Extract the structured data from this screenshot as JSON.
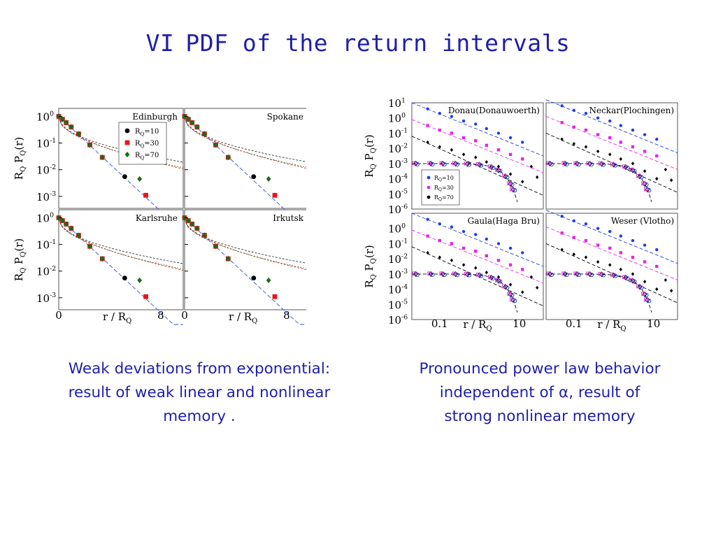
{
  "title": {
    "part1": "VI",
    "part2": "PDF of the return intervals"
  },
  "captions": {
    "left": [
      "Weak deviations from exponential:",
      "result of weak linear and  nonlinear",
      "memory ."
    ],
    "right": [
      "Pronounced power law behavior",
      "independent of α, result of",
      "strong nonlinear memory"
    ]
  },
  "colors": {
    "text": "#1f1fa8",
    "rq10": "#000000",
    "rq30": "#e8151b",
    "rq70": "#1a6b1a",
    "rq10_right": "#1f3fe6",
    "rq30_right": "#e626e6",
    "rq70_right": "#000000"
  },
  "chart_data": [
    {
      "type": "scatter",
      "panels": [
        "Edinburgh",
        "Spokane",
        "Karlsruhe",
        "Irkutsk"
      ],
      "xlabel_base": "r / R",
      "xlabel_sub": "Q",
      "ylabel": "R_Q P_Q(r)",
      "xticks": [
        "0",
        "8"
      ],
      "yticks": [
        "10^0",
        "10^-1",
        "10^-2",
        "10^-3"
      ],
      "xlim": [
        0,
        10
      ],
      "ylog": true,
      "ylim_exp": [
        -3.45,
        0.3
      ],
      "legend": [
        "R_Q=10",
        "R_Q=30",
        "R_Q=70"
      ],
      "legend_placement": "top-right of Edinburgh panel",
      "series": [
        {
          "name": "R_Q=10",
          "marker": "circle",
          "color": "#000000",
          "x": [
            0,
            0.3,
            0.6,
            1,
            1.6,
            2.5,
            3.5,
            5.3
          ],
          "y": [
            1.0,
            0.78,
            0.58,
            0.4,
            0.22,
            0.085,
            0.029,
            0.0055
          ]
        },
        {
          "name": "R_Q=30",
          "marker": "square",
          "color": "#e8151b",
          "x": [
            0,
            0.3,
            0.6,
            1,
            1.6,
            2.5,
            3.5,
            7
          ],
          "y": [
            1.0,
            0.78,
            0.58,
            0.4,
            0.22,
            0.085,
            0.029,
            0.0011
          ]
        },
        {
          "name": "R_Q=70",
          "marker": "diamond",
          "color": "#1a6b1a",
          "x": [
            0,
            0.3,
            0.6,
            1,
            1.6,
            2.5,
            3.5,
            6.5
          ],
          "y": [
            1.0,
            0.78,
            0.58,
            0.4,
            0.22,
            0.085,
            0.029,
            0.0045
          ]
        }
      ]
    },
    {
      "type": "scatter",
      "panels": [
        "Donau(Donauwoerth)",
        "Neckar(Plochingen)",
        "Gaula(Haga Bru)",
        "Weser (Vlotho)"
      ],
      "xlabel_base": "r / R",
      "xlabel_sub": "Q",
      "ylabel": "R_Q P_Q(r)",
      "xscale": "log",
      "xticks": [
        "0.1",
        "10"
      ],
      "xlim": [
        0.02,
        40
      ],
      "yticks": [
        "10^1",
        "10^0",
        "10^-1",
        "10^-2",
        "10^-3",
        "10^-4",
        "10^-5",
        "10^-6"
      ],
      "ylog": true,
      "ylim_exp": [
        -6,
        1
      ],
      "legend": [
        "R_Q=10",
        "R_Q=30",
        "R_Q=70"
      ],
      "legend_placement": "lower-left of Donau panel",
      "note": "series are shifted vertically for clarity; bottom group shows rescaled curves",
      "series": [
        {
          "name": "R_Q=10",
          "marker": "circle",
          "color": "#1f3fe6",
          "x": [
            0.05,
            0.1,
            0.2,
            0.4,
            0.8,
            1.5,
            3,
            6,
            12
          ],
          "y_exp": [
            0.6,
            0.3,
            0.1,
            -0.2,
            -0.4,
            -0.7,
            -1.0,
            -1.3,
            -1.6
          ]
        },
        {
          "name": "R_Q=30",
          "marker": "square",
          "color": "#e626e6",
          "x": [
            0.05,
            0.1,
            0.2,
            0.4,
            0.8,
            1.5,
            3,
            6,
            12
          ],
          "y_exp": [
            -0.5,
            -0.8,
            -1.0,
            -1.3,
            -1.5,
            -1.8,
            -2.1,
            -2.4,
            -2.7
          ]
        },
        {
          "name": "R_Q=70",
          "marker": "diamond",
          "color": "#000000",
          "x": [
            0.05,
            0.1,
            0.2,
            0.4,
            0.8,
            1.5,
            3,
            6,
            12
          ],
          "y_exp": [
            -1.6,
            -1.9,
            -2.1,
            -2.4,
            -2.6,
            -2.9,
            -3.2,
            -3.7,
            -4.2
          ]
        }
      ]
    }
  ]
}
